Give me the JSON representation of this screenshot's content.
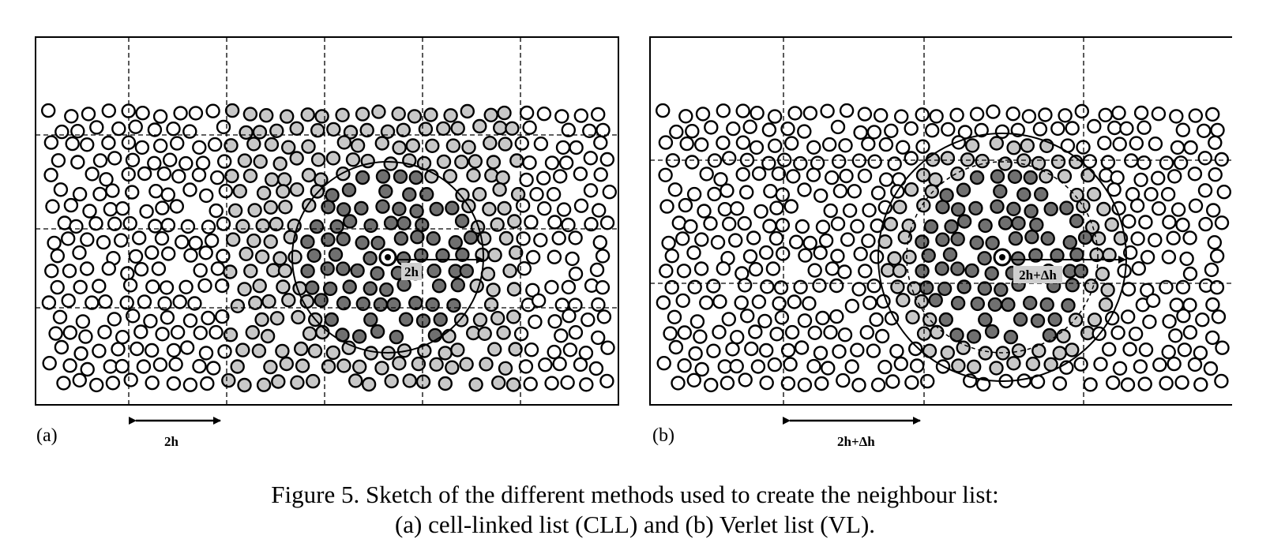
{
  "panel_a": {
    "label": "(a)",
    "radius_label": "2h",
    "cell_size_label": "2h"
  },
  "panel_b": {
    "label": "(b)",
    "radius_label": "2h+Δh",
    "cell_size_label": "2h+Δh"
  },
  "caption": {
    "line1": "Figure 5. Sketch of the different methods used to create the neighbour list:",
    "line2": "(a) cell-linked list (CLL) and (b) Verlet list (VL)."
  },
  "colors": {
    "outline": "#000000",
    "empty_particle": "#ffffff",
    "neighbour_particle": "#707070",
    "candidate_particle": "#c8c8c8"
  }
}
